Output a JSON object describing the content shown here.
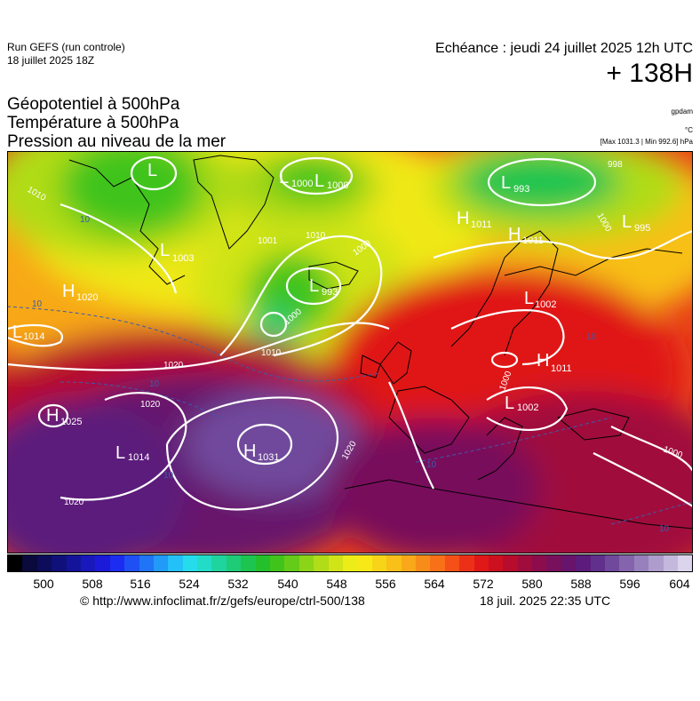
{
  "header": {
    "run_name": "Run GEFS (run controle)",
    "run_date": "18 juillet 2025 18Z",
    "valid_time": "Echéance : jeudi 24 juillet 2025 12h UTC",
    "lead_time": "+ 138H"
  },
  "titles": {
    "line1": "Géopotentiel à 500hPa",
    "line2": "Température à 500hPa",
    "line3": "Pression au niveau de la mer"
  },
  "units": {
    "geopotential": "gpdam",
    "temperature": "°C",
    "pressure_minmax": "[Max 1031.3 | Min 992.6] hPa"
  },
  "pressure_centers": [
    {
      "type": "L",
      "value": ""
    },
    {
      "type": "L",
      "value": "1000"
    },
    {
      "type": "L",
      "value": "1000"
    },
    {
      "type": "L",
      "value": "993"
    },
    {
      "type": "L",
      "value": "995"
    },
    {
      "type": "L",
      "value": "1003"
    },
    {
      "type": "L",
      "value": "993"
    },
    {
      "type": "H",
      "value": "1011"
    },
    {
      "type": "H",
      "value": "1011"
    },
    {
      "type": "H",
      "value": "1020"
    },
    {
      "type": "L",
      "value": "1014"
    },
    {
      "type": "L",
      "value": "1002"
    },
    {
      "type": "H",
      "value": "1011"
    },
    {
      "type": "L",
      "value": "1002"
    },
    {
      "type": "H",
      "value": "1025"
    },
    {
      "type": "L",
      "value": "1014"
    },
    {
      "type": "H",
      "value": "1031"
    }
  ],
  "isobar_labels": [
    "1010",
    "1001",
    "1010",
    "1000",
    "1000",
    "1010",
    "1020",
    "1020",
    "1020",
    "1020",
    "1000",
    "998",
    "1000",
    "1000"
  ],
  "temperature_labels": [
    "10",
    "10",
    "10",
    "10",
    "10",
    "10",
    "10"
  ],
  "colorbar": {
    "tick_labels": [
      "500",
      "508",
      "516",
      "524",
      "532",
      "540",
      "548",
      "556",
      "564",
      "572",
      "580",
      "588",
      "596",
      "604"
    ],
    "colors": [
      "#000000",
      "#0a0a3c",
      "#0c0c5a",
      "#10107a",
      "#14149a",
      "#1818bc",
      "#1a1ad8",
      "#1c2cf0",
      "#1e50f4",
      "#2074f6",
      "#229af8",
      "#24c0f8",
      "#24dcec",
      "#22dcc8",
      "#20d4a0",
      "#1ecc78",
      "#1ec450",
      "#24c02c",
      "#40c41c",
      "#64cc18",
      "#8cd418",
      "#b0dc18",
      "#d0e418",
      "#ecec18",
      "#f8e818",
      "#f8d418",
      "#f8c018",
      "#f8a818",
      "#f88c18",
      "#f87018",
      "#f45018",
      "#ec3018",
      "#e01818",
      "#cc1020",
      "#b80c2c",
      "#a00c3c",
      "#8c0c4c",
      "#78105c",
      "#68146c",
      "#5c1c7c",
      "#60308c",
      "#70489c",
      "#8464ac",
      "#9880bc",
      "#ae9ccc",
      "#c4b8dc",
      "#dcd4ec"
    ]
  },
  "footer": {
    "source_url": "© http://www.infoclimat.fr/z/gefs/europe/ctrl-500/138",
    "generated": "18 juil. 2025 22:35 UTC"
  }
}
